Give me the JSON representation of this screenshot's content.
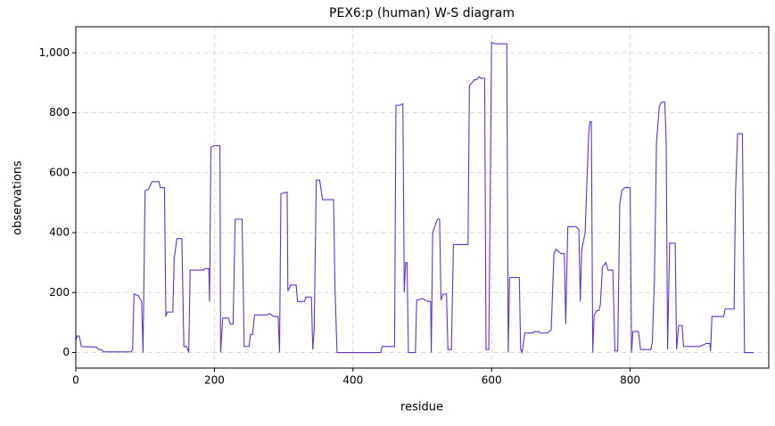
{
  "chart_data": {
    "type": "line",
    "title": "PEX6:p (human) W-S diagram",
    "x_label": "residue",
    "y_label": "observations",
    "xlim": [
      0,
      1000
    ],
    "ylim": [
      -52,
      1087
    ],
    "xticks": [
      0,
      200,
      400,
      600,
      800
    ],
    "yticks": [
      0,
      200,
      400,
      600,
      800,
      {
        "value": 1000,
        "label": "1,000"
      }
    ],
    "grid": true,
    "series": [
      {
        "name": "observations",
        "color": "#6633cc",
        "x": [
          0,
          2,
          5,
          8,
          30,
          33,
          37,
          40,
          80,
          82,
          84,
          90,
          95,
          97,
          100,
          105,
          110,
          120,
          122,
          128,
          130,
          132,
          140,
          142,
          146,
          153,
          156,
          160,
          163,
          165,
          185,
          186,
          192,
          193,
          195,
          200,
          208,
          209,
          212,
          220,
          223,
          227,
          230,
          240,
          243,
          250,
          252,
          255,
          258,
          275,
          280,
          285,
          292,
          294,
          296,
          305,
          306,
          310,
          318,
          320,
          330,
          332,
          340,
          342,
          344,
          347,
          352,
          356,
          372,
          374,
          377,
          440,
          442,
          460,
          462,
          468,
          472,
          474,
          476,
          478,
          480,
          490,
          492,
          500,
          508,
          512,
          513,
          515,
          518,
          522,
          525,
          527,
          530,
          535,
          537,
          542,
          545,
          566,
          568,
          575,
          578,
          582,
          585,
          590,
          592,
          596,
          600,
          605,
          622,
          624,
          626,
          640,
          642,
          644,
          648,
          660,
          662,
          668,
          670,
          680,
          686,
          690,
          693,
          700,
          705,
          707,
          710,
          722,
          726,
          728,
          730,
          735,
          740,
          742,
          744,
          746,
          748,
          752,
          755,
          757,
          760,
          765,
          768,
          775,
          778,
          782,
          785,
          788,
          792,
          800,
          802,
          804,
          812,
          815,
          830,
          832,
          835,
          838,
          842,
          845,
          850,
          852,
          854,
          857,
          865,
          867,
          870,
          875,
          877,
          900,
          905,
          910,
          915,
          916,
          918,
          935,
          937,
          950,
          952,
          955,
          962,
          965,
          978
        ],
        "values": [
          40,
          55,
          55,
          20,
          18,
          10,
          10,
          2,
          2,
          10,
          195,
          190,
          170,
          0,
          540,
          545,
          570,
          570,
          550,
          550,
          120,
          135,
          135,
          315,
          380,
          380,
          20,
          20,
          0,
          275,
          275,
          280,
          280,
          170,
          685,
          690,
          690,
          0,
          115,
          115,
          95,
          95,
          445,
          445,
          20,
          20,
          60,
          60,
          125,
          125,
          130,
          120,
          120,
          0,
          530,
          535,
          205,
          225,
          225,
          170,
          170,
          185,
          185,
          10,
          75,
          575,
          575,
          510,
          510,
          215,
          0,
          0,
          20,
          20,
          825,
          825,
          830,
          200,
          300,
          300,
          0,
          0,
          175,
          180,
          170,
          170,
          0,
          400,
          420,
          445,
          445,
          175,
          195,
          195,
          10,
          10,
          360,
          360,
          890,
          910,
          910,
          920,
          915,
          915,
          10,
          10,
          1035,
          1030,
          1030,
          0,
          250,
          250,
          10,
          0,
          65,
          65,
          70,
          70,
          65,
          65,
          75,
          330,
          345,
          330,
          330,
          95,
          420,
          420,
          410,
          170,
          340,
          400,
          725,
          770,
          770,
          0,
          125,
          140,
          140,
          160,
          285,
          300,
          275,
          275,
          5,
          5,
          495,
          540,
          550,
          550,
          0,
          70,
          70,
          10,
          10,
          35,
          240,
          700,
          820,
          835,
          835,
          700,
          10,
          365,
          365,
          10,
          90,
          90,
          20,
          20,
          25,
          30,
          30,
          5,
          120,
          120,
          145,
          145,
          530,
          730,
          730,
          0,
          0
        ]
      }
    ]
  }
}
